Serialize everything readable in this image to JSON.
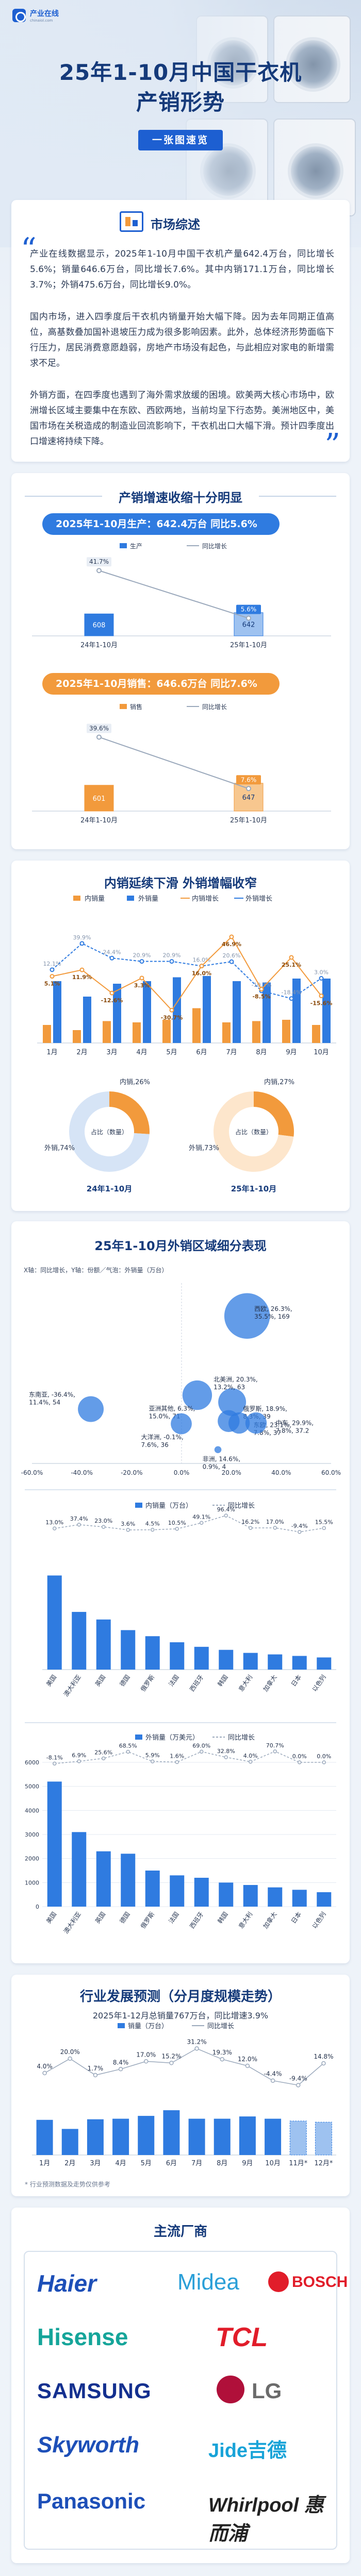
{
  "brand": {
    "name": "产业在线",
    "sub": "chinaiol.com"
  },
  "hero": {
    "title_line1": "25年1-10月中国干衣机",
    "title_line2": "产销形势",
    "pill": "一张图速览"
  },
  "overview": {
    "title": "市场综述",
    "p1": "产业在线数据显示，2025年1-10月中国干衣机产量642.4万台，同比增长5.6%；销量646.6万台，同比增长7.6%。其中内销171.1万台，同比增长3.7%；外销475.6万台，同比增长9.0%。",
    "p2": "国内市场，进入四季度后干衣机内销量开始大幅下降。因为去年同期正值高位，高基数叠加国补退坡压力成为很多影响因素。此外，总体经济形势面临下行压力，居民消费意愿趋弱，房地产市场没有起色，与此相应对家电的新增需求不足。",
    "p3": "外销方面，在四季度也遇到了海外需求放缓的困境。欧美两大核心市场中，欧洲增长区域主要集中在东欧、西欧两地，当前均呈下行态势。美洲地区中，美国市场在关税造成的制造业回流影响下，干衣机出口大幅下滑。预计四季度出口增速将持续下降。"
  },
  "prod_sales": {
    "title": "产销增速收缩十分明显",
    "prod_pill": "2025年1-10月生产：642.4万台  同比5.6%",
    "sales_pill": "2025年1-10月销售：646.6万台  同比7.6%",
    "legend_prod": "生产",
    "legend_sales": "销售",
    "legend_growth": "同比增长",
    "categories": [
      "24年1-10月",
      "25年1-10月"
    ],
    "prod_values": [
      "608",
      "642"
    ],
    "prod_growth": [
      "41.7%",
      "5.6%"
    ],
    "sales_values": [
      "601",
      "647"
    ],
    "sales_growth": [
      "39.6%",
      "7.6%"
    ]
  },
  "dom_exp": {
    "title": "内销延续下滑 外销增幅收窄",
    "legend": [
      "内销量",
      "外销量",
      "内销增长",
      "外销增长"
    ],
    "donut1": {
      "caption": "24年1-10月",
      "inner": "内销,26%",
      "outer": "外销,74%",
      "center": "占比（数量）"
    },
    "donut2": {
      "caption": "25年1-10月",
      "inner": "内销,27%",
      "outer": "外销,73%",
      "center": "占比（数量）"
    }
  },
  "export_regions": {
    "title": "25年1-10月外销区域细分表现",
    "axis_note": "X轴：同比增长，Y轴：份额／气泡：外销量（万台）",
    "x_ticks": [
      "-60.0%",
      "-40.0%",
      "-20.0%",
      "0.0%",
      "20.0%",
      "40.0%",
      "60.0%"
    ],
    "labels": {
      "west_eu": "西欧, 26.3%,",
      "west_eu2": "35.5%, 169",
      "east_asia": "东南亚, -36.4%,",
      "east_asia2": "11.4%, 54",
      "north_am": "北美洲, 20.3%,",
      "north_am2": "13.2%, 63",
      "east_eu": "东欧, 23.1%,",
      "east_eu2": "7.8%, 37",
      "oceania": "大洋洲, -0.1%,",
      "oceania2": "7.6%, 36",
      "russia": "俄罗斯, 18.9%,",
      "russia2": "8.3%, 39",
      "mid_east": "亚洲其他, 6.3%,",
      "mid_east2": "15.0%, 71",
      "africa": "非洲, 14.6%,",
      "africa2": "0.9%, 4",
      "mideast2": "中东, 29.9%,",
      "mideast22": "7.8%, 37.2"
    }
  },
  "country_dom": {
    "legend_bar": "内销量（万台）",
    "legend_line": "同比增长"
  },
  "country_exp": {
    "legend_bar": "外销量（万美元）",
    "legend_line": "同比增长"
  },
  "forecast": {
    "title": "行业发展预测（分月度规模走势）",
    "subtitle": "2025年1-12月总销量767万台，同比增速3.9%",
    "legend_bar": "销量（万台）",
    "legend_line": "同比增长",
    "note": "* 行业预测数据及走势仅供参考"
  },
  "brands": {
    "title": "主流厂商",
    "list": [
      "Haier",
      "Midea",
      "BOSCH",
      "Hisense",
      "TCL",
      "SAMSUNG",
      "LG",
      "Skyworth",
      "Jide吉德",
      "Panasonic",
      "Whirlpool 惠而浦"
    ]
  },
  "chart_data": [
    {
      "type": "bar",
      "title": "产销增速收缩十分明显（生产）",
      "categories": [
        "24年1-10月",
        "25年1-10月"
      ],
      "series": [
        {
          "name": "生产",
          "values": [
            608,
            642
          ]
        },
        {
          "name": "同比增长",
          "values": [
            41.7,
            5.6
          ]
        }
      ]
    },
    {
      "type": "bar",
      "title": "产销增速收缩十分明显（销售）",
      "categories": [
        "24年1-10月",
        "25年1-10月"
      ],
      "series": [
        {
          "name": "销售",
          "values": [
            601,
            647
          ]
        },
        {
          "name": "同比增长",
          "values": [
            39.6,
            7.6
          ]
        }
      ]
    },
    {
      "type": "bar",
      "title": "内销延续下滑 外销增幅收窄",
      "categories": [
        "1月",
        "2月",
        "3月",
        "4月",
        "5月",
        "6月",
        "7月",
        "8月",
        "9月",
        "10月"
      ],
      "series": [
        {
          "name": "内销量",
          "values": [
            14,
            10,
            17,
            16,
            18,
            27,
            16,
            17,
            18,
            14
          ],
          "type": "bar"
        },
        {
          "name": "外销量",
          "values": [
            48,
            36,
            46,
            48,
            51,
            52,
            48,
            47,
            50,
            50
          ],
          "type": "bar"
        },
        {
          "name": "内销增长",
          "values": [
            5.1,
            11.9,
            -12.6,
            3.3,
            -30.7,
            16.0,
            46.9,
            -8.5,
            25.1,
            -15.6
          ],
          "type": "line"
        },
        {
          "name": "外销增长",
          "values": [
            12.1,
            39.9,
            24.4,
            20.9,
            20.9,
            16.0,
            20.6,
            -10.3,
            -18.4,
            3.0
          ],
          "type": "line"
        }
      ]
    },
    {
      "type": "pie",
      "title": "24年1-10月 占比（数量）",
      "categories": [
        "内销",
        "外销"
      ],
      "values": [
        26,
        74
      ]
    },
    {
      "type": "pie",
      "title": "25年1-10月 占比（数量）",
      "categories": [
        "内销",
        "外销"
      ],
      "values": [
        27,
        73
      ]
    },
    {
      "type": "scatter",
      "title": "25年1-10月外销区域细分表现",
      "xlabel": "同比增长",
      "ylabel": "份额",
      "xlim": [
        -60,
        60
      ],
      "points": [
        {
          "name": "西欧",
          "x": 26.3,
          "y": 35.5,
          "size": 169
        },
        {
          "name": "东南亚",
          "x": -36.4,
          "y": 11.4,
          "size": 54
        },
        {
          "name": "北美洲",
          "x": 20.3,
          "y": 13.2,
          "size": 63
        },
        {
          "name": "亚洲其他",
          "x": 6.3,
          "y": 15.0,
          "size": 71
        },
        {
          "name": "俄罗斯",
          "x": 18.9,
          "y": 8.3,
          "size": 39
        },
        {
          "name": "东欧",
          "x": 23.1,
          "y": 7.8,
          "size": 37
        },
        {
          "name": "中东",
          "x": 29.9,
          "y": 7.8,
          "size": 37.2
        },
        {
          "name": "大洋洲",
          "x": -0.1,
          "y": 7.6,
          "size": 36
        },
        {
          "name": "非洲",
          "x": 14.6,
          "y": 0.9,
          "size": 4
        }
      ]
    },
    {
      "type": "bar",
      "title": "分国家外销量（万台）",
      "categories": [
        "美国",
        "澳大利亚",
        "英国",
        "德国",
        "俄罗斯",
        "法国",
        "西班牙",
        "韩国",
        "意大利",
        "加拿大",
        "日本",
        "以色列"
      ],
      "series": [
        {
          "name": "外销量（万台）",
          "values": [
            62,
            38,
            33,
            26,
            22,
            18,
            15,
            13,
            11,
            10,
            9,
            8
          ]
        },
        {
          "name": "同比增长",
          "values": [
            13.0,
            37.4,
            23.0,
            3.6,
            4.5,
            10.5,
            49.1,
            96.4,
            16.2,
            17.0,
            -9.4,
            15.5
          ]
        }
      ]
    },
    {
      "type": "bar",
      "title": "分国家外销额（万美元）",
      "ylim": [
        0,
        6000
      ],
      "categories": [
        "美国",
        "澳大利亚",
        "英国",
        "德国",
        "俄罗斯",
        "法国",
        "西班牙",
        "韩国",
        "意大利",
        "加拿大",
        "日本",
        "以色列"
      ],
      "series": [
        {
          "name": "外销额（万美元）",
          "values": [
            5200,
            3100,
            2300,
            2200,
            1500,
            1300,
            1200,
            1000,
            900,
            800,
            700,
            600
          ]
        },
        {
          "name": "同比增长",
          "values": [
            -8.1,
            6.9,
            25.6,
            68.5,
            5.9,
            1.6,
            69.0,
            32.8,
            4.0,
            70.7,
            0,
            0
          ]
        }
      ]
    },
    {
      "type": "bar",
      "title": "行业发展预测（分月度规模走势）",
      "categories": [
        "1月",
        "2月",
        "3月",
        "4月",
        "5月",
        "6月",
        "7月",
        "8月",
        "9月",
        "10月",
        "11月*",
        "12月*"
      ],
      "series": [
        {
          "name": "销量（万台）",
          "values": [
            62,
            46,
            63,
            64,
            69,
            79,
            64,
            64,
            68,
            64,
            60,
            58
          ]
        },
        {
          "name": "同比增长",
          "values": [
            4.0,
            20.0,
            1.7,
            8.4,
            17.0,
            15.2,
            31.2,
            19.3,
            12.0,
            -4.4,
            -9.4,
            14.8
          ]
        }
      ]
    }
  ]
}
